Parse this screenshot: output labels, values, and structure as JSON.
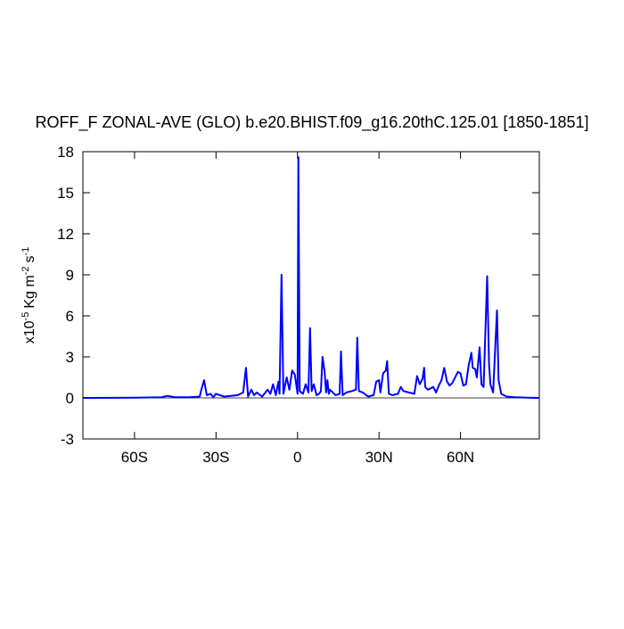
{
  "chart_data": {
    "type": "line",
    "title": "ROFF_F ZONAL-AVE (GLO) b.e20.BHIST.f09_g16.20thC.125.01 [1850-1851]",
    "ylabel": [
      {
        "text": "x10",
        "sup": "-5"
      },
      {
        "text": "Kg m",
        "sup": "-2"
      },
      {
        "text": "s",
        "sup": "-1"
      }
    ],
    "x": [
      -79,
      -60,
      -50,
      -48,
      -45,
      -40,
      -36,
      -35.4,
      -34.4,
      -33.4,
      -32,
      -31,
      -30,
      -27,
      -22,
      -20,
      -19,
      -18.2,
      -17,
      -16,
      -15,
      -13,
      -11,
      -10,
      -9,
      -8,
      -7,
      -6.6,
      -5.9,
      -5.2,
      -4,
      -3,
      -2,
      -1,
      0,
      0.3,
      0.8,
      2,
      3,
      4,
      4.6,
      5.2,
      6,
      7,
      8,
      8.6,
      9.2,
      10,
      10.5,
      11,
      11.5,
      12,
      14,
      15.5,
      16,
      16.6,
      18,
      20,
      21.5,
      22,
      22.6,
      24,
      26,
      28,
      29,
      30,
      30.5,
      31.5,
      32.5,
      33,
      33.6,
      35,
      37,
      38,
      39,
      41,
      43,
      44,
      45,
      46,
      46.6,
      47,
      48,
      50,
      51,
      52,
      53,
      54,
      55,
      56,
      57,
      59,
      60,
      61,
      62,
      63,
      64,
      64.5,
      65.4,
      66,
      67,
      67.7,
      68.5,
      69.8,
      70.5,
      71,
      72,
      73.4,
      74,
      75,
      77,
      80,
      85,
      89
    ],
    "series": [
      {
        "color": "#0000ff",
        "values": [
          0,
          0.02,
          0.05,
          0.15,
          0.05,
          0.05,
          0.1,
          0.6,
          1.3,
          0.2,
          0.3,
          0.05,
          0.3,
          0.1,
          0.2,
          0.4,
          2.2,
          0.1,
          0.6,
          0.2,
          0.4,
          0.1,
          0.6,
          0.3,
          1.0,
          0.2,
          1.2,
          0.3,
          9.0,
          0.3,
          1.5,
          0.6,
          2.0,
          1.7,
          0.3,
          17.6,
          0.5,
          0.3,
          1.0,
          0.4,
          5.1,
          0.5,
          1.0,
          0.2,
          0.3,
          0.5,
          3.0,
          1.9,
          0.4,
          1.3,
          0.3,
          0.6,
          0.2,
          0.3,
          3.4,
          0.2,
          0.4,
          0.5,
          0.6,
          4.4,
          0.5,
          0.4,
          0.1,
          0.2,
          1.2,
          1.3,
          0.4,
          1.8,
          2.0,
          2.7,
          0.3,
          0.2,
          0.3,
          0.8,
          0.5,
          0.4,
          0.3,
          1.6,
          1.0,
          1.4,
          2.2,
          0.8,
          0.6,
          0.8,
          0.4,
          0.9,
          1.3,
          2.2,
          1.2,
          0.9,
          1.1,
          1.9,
          1.8,
          0.9,
          1.0,
          2.4,
          3.3,
          2.2,
          2.1,
          1.5,
          3.7,
          1.0,
          0.8,
          8.9,
          2.5,
          1.0,
          0.4,
          6.4,
          1.3,
          0.3,
          0.1,
          0.05,
          0.02,
          0
        ]
      }
    ],
    "xlim": [
      -79,
      89
    ],
    "xticks": [
      {
        "value": -60,
        "label": "60S"
      },
      {
        "value": -30,
        "label": "30S"
      },
      0,
      {
        "value": 30,
        "label": "30N"
      },
      {
        "value": 60,
        "label": "60N"
      }
    ],
    "ylim": [
      -3,
      18
    ],
    "yticks": [
      -3,
      0,
      3,
      6,
      9,
      12,
      15,
      18
    ]
  }
}
